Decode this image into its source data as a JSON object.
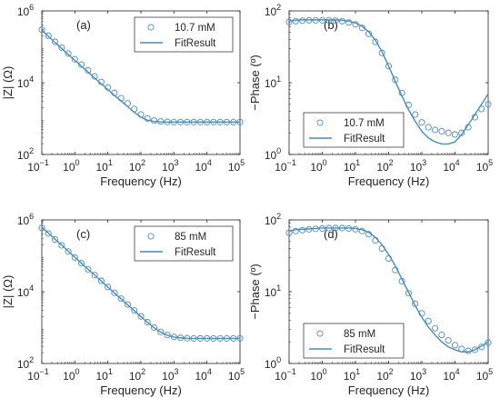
{
  "colors": {
    "series": "#4a8cbf",
    "axis": "#262626",
    "frame": "#262626",
    "background": "#ffffff"
  },
  "chart_data": [
    {
      "type": "scatter",
      "panel_label": "(a)",
      "xlabel": "Frequency (Hz)",
      "ylabel": "|Z| (Ω)",
      "xscale": "log",
      "yscale": "log",
      "xlim": [
        0.1,
        100000
      ],
      "ylim": [
        100,
        1000000
      ],
      "x_ticks": [
        {
          "value": 0.1,
          "base": "10",
          "exp": "−1"
        },
        {
          "value": 1,
          "base": "10",
          "exp": "0"
        },
        {
          "value": 10,
          "base": "10",
          "exp": "1"
        },
        {
          "value": 100,
          "base": "10",
          "exp": "2"
        },
        {
          "value": 1000,
          "base": "10",
          "exp": "3"
        },
        {
          "value": 10000,
          "base": "10",
          "exp": "4"
        },
        {
          "value": 100000,
          "base": "10",
          "exp": "5"
        }
      ],
      "y_ticks": [
        {
          "value": 100,
          "base": "10",
          "exp": "2"
        },
        {
          "value": 10000,
          "base": "10",
          "exp": "4"
        },
        {
          "value": 1000000,
          "base": "10",
          "exp": "6"
        }
      ],
      "legend": {
        "position": "top-right",
        "entries": [
          "10.7 mM",
          "FitResult"
        ]
      },
      "series": [
        {
          "name": "10.7 mM",
          "kind": "markers",
          "x": [
            0.1,
            0.158,
            0.251,
            0.398,
            0.631,
            1,
            1.58,
            2.51,
            3.98,
            6.31,
            10,
            15.8,
            25.1,
            39.8,
            63.1,
            100,
            158,
            251,
            398,
            631,
            1000,
            1580,
            2510,
            3980,
            6310,
            10000,
            15800,
            25100,
            39800,
            63100,
            100000
          ],
          "y": [
            300000,
            205000,
            138000,
            95000,
            65000,
            45000,
            32000,
            22000,
            15000,
            10500,
            7400,
            5200,
            3700,
            2650,
            1850,
            1300,
            1010,
            880,
            830,
            810,
            800,
            800,
            800,
            800,
            800,
            800,
            800,
            800,
            800,
            800,
            800
          ]
        },
        {
          "name": "FitResult",
          "kind": "line",
          "x": [
            0.1,
            0.158,
            0.251,
            0.398,
            0.631,
            1,
            1.58,
            2.51,
            3.98,
            6.31,
            10,
            15.8,
            25.1,
            39.8,
            63.1,
            100,
            158,
            251,
            398,
            631,
            1000,
            1580,
            2510,
            3980,
            6310,
            10000,
            15800,
            25100,
            39800,
            63100,
            100000
          ],
          "y": [
            290000,
            195000,
            132000,
            90000,
            61000,
            42000,
            29000,
            20000,
            13500,
            9300,
            6400,
            4400,
            3100,
            2150,
            1500,
            1100,
            900,
            830,
            805,
            800,
            800,
            800,
            800,
            800,
            800,
            800,
            800,
            800,
            800,
            800,
            800
          ]
        }
      ]
    },
    {
      "type": "scatter",
      "panel_label": "(b)",
      "xlabel": "Frequency (Hz)",
      "ylabel": "−Phase (º)",
      "xscale": "log",
      "yscale": "log",
      "xlim": [
        0.1,
        100000
      ],
      "ylim": [
        1,
        100
      ],
      "x_ticks": [
        {
          "value": 0.1,
          "base": "10",
          "exp": "−1"
        },
        {
          "value": 1,
          "base": "10",
          "exp": "0"
        },
        {
          "value": 10,
          "base": "10",
          "exp": "1"
        },
        {
          "value": 100,
          "base": "10",
          "exp": "2"
        },
        {
          "value": 1000,
          "base": "10",
          "exp": "3"
        },
        {
          "value": 10000,
          "base": "10",
          "exp": "4"
        },
        {
          "value": 100000,
          "base": "10",
          "exp": "5"
        }
      ],
      "y_ticks": [
        {
          "value": 1,
          "base": "10",
          "exp": "0"
        },
        {
          "value": 10,
          "base": "10",
          "exp": "1"
        },
        {
          "value": 100,
          "base": "10",
          "exp": "2"
        }
      ],
      "legend": {
        "position": "bottom-right",
        "entries": [
          "10.7 mM",
          "FitResult"
        ]
      },
      "series": [
        {
          "name": "10.7 mM",
          "kind": "markers",
          "x": [
            0.1,
            0.158,
            0.251,
            0.398,
            0.631,
            1,
            1.58,
            2.51,
            3.98,
            6.31,
            10,
            15.8,
            25.1,
            39.8,
            63.1,
            100,
            158,
            251,
            398,
            631,
            1000,
            1580,
            2510,
            3980,
            6310,
            10000,
            15800,
            25100,
            39800,
            63100,
            100000
          ],
          "y": [
            70,
            72,
            73,
            74,
            74,
            74,
            74,
            73,
            72,
            69,
            65,
            58,
            48,
            37,
            26,
            17,
            11,
            7.2,
            4.9,
            3.6,
            2.8,
            2.4,
            2.2,
            2.1,
            2.0,
            1.9,
            2.0,
            2.4,
            3.3,
            4.3,
            5.0
          ]
        },
        {
          "name": "FitResult",
          "kind": "line",
          "x": [
            0.1,
            0.158,
            0.251,
            0.398,
            0.631,
            1,
            1.58,
            2.51,
            3.98,
            6.31,
            10,
            15.8,
            25.1,
            39.8,
            63.1,
            100,
            158,
            251,
            398,
            631,
            1000,
            1580,
            2510,
            3980,
            6310,
            10000,
            15800,
            25100,
            39800,
            63100,
            100000
          ],
          "y": [
            73,
            74,
            75,
            75,
            75,
            75,
            75,
            75,
            74,
            72,
            68,
            61,
            51,
            39,
            27,
            17,
            10.5,
            6.5,
            4.2,
            2.9,
            2.1,
            1.7,
            1.5,
            1.4,
            1.4,
            1.5,
            1.9,
            2.6,
            3.6,
            5.0,
            7.0
          ]
        }
      ]
    },
    {
      "type": "scatter",
      "panel_label": "(c)",
      "xlabel": "Frequency (Hz)",
      "ylabel": "|Z| (Ω)",
      "xscale": "log",
      "yscale": "log",
      "xlim": [
        0.1,
        100000
      ],
      "ylim": [
        100,
        1000000
      ],
      "x_ticks": [
        {
          "value": 0.1,
          "base": "10",
          "exp": "−1"
        },
        {
          "value": 1,
          "base": "10",
          "exp": "0"
        },
        {
          "value": 10,
          "base": "10",
          "exp": "1"
        },
        {
          "value": 100,
          "base": "10",
          "exp": "2"
        },
        {
          "value": 1000,
          "base": "10",
          "exp": "3"
        },
        {
          "value": 10000,
          "base": "10",
          "exp": "4"
        },
        {
          "value": 100000,
          "base": "10",
          "exp": "5"
        }
      ],
      "y_ticks": [
        {
          "value": 100,
          "base": "10",
          "exp": "2"
        },
        {
          "value": 10000,
          "base": "10",
          "exp": "4"
        },
        {
          "value": 1000000,
          "base": "10",
          "exp": "6"
        }
      ],
      "legend": {
        "position": "top-right",
        "entries": [
          "85 mM",
          "FitResult"
        ]
      },
      "series": [
        {
          "name": "85 mM",
          "kind": "markers",
          "x": [
            0.1,
            0.158,
            0.251,
            0.398,
            0.631,
            1,
            1.58,
            2.51,
            3.98,
            6.31,
            10,
            15.8,
            25.1,
            39.8,
            63.1,
            100,
            158,
            251,
            398,
            631,
            1000,
            1580,
            2510,
            3980,
            6310,
            10000,
            15800,
            25100,
            39800,
            63100,
            100000
          ],
          "y": [
            600000,
            420000,
            285000,
            195000,
            132000,
            90000,
            62000,
            42000,
            29000,
            20000,
            13500,
            9300,
            6400,
            4400,
            3000,
            2050,
            1420,
            1000,
            760,
            620,
            550,
            520,
            505,
            500,
            500,
            500,
            500,
            500,
            500,
            500,
            500
          ]
        },
        {
          "name": "FitResult",
          "kind": "line",
          "x": [
            0.1,
            0.158,
            0.251,
            0.398,
            0.631,
            1,
            1.58,
            2.51,
            3.98,
            6.31,
            10,
            15.8,
            25.1,
            39.8,
            63.1,
            100,
            158,
            251,
            398,
            631,
            1000,
            1580,
            2510,
            3980,
            6310,
            10000,
            15800,
            25100,
            39800,
            63100,
            100000
          ],
          "y": [
            620000,
            430000,
            290000,
            198000,
            134000,
            91000,
            62000,
            42000,
            29000,
            19800,
            13400,
            9200,
            6300,
            4300,
            2950,
            2020,
            1400,
            990,
            750,
            610,
            545,
            515,
            503,
            500,
            500,
            500,
            500,
            500,
            500,
            500,
            500
          ]
        }
      ]
    },
    {
      "type": "scatter",
      "panel_label": "(d)",
      "xlabel": "Frequency (Hz)",
      "ylabel": "−Phase (º)",
      "xscale": "log",
      "yscale": "log",
      "xlim": [
        0.1,
        100000
      ],
      "ylim": [
        1,
        100
      ],
      "x_ticks": [
        {
          "value": 0.1,
          "base": "10",
          "exp": "−1"
        },
        {
          "value": 1,
          "base": "10",
          "exp": "0"
        },
        {
          "value": 10,
          "base": "10",
          "exp": "1"
        },
        {
          "value": 100,
          "base": "10",
          "exp": "2"
        },
        {
          "value": 1000,
          "base": "10",
          "exp": "3"
        },
        {
          "value": 10000,
          "base": "10",
          "exp": "4"
        },
        {
          "value": 100000,
          "base": "10",
          "exp": "5"
        }
      ],
      "y_ticks": [
        {
          "value": 1,
          "base": "10",
          "exp": "0"
        },
        {
          "value": 10,
          "base": "10",
          "exp": "1"
        },
        {
          "value": 100,
          "base": "10",
          "exp": "2"
        }
      ],
      "legend": {
        "position": "bottom-center",
        "entries": [
          "85 mM",
          "FitResult"
        ]
      },
      "series": [
        {
          "name": "85 mM",
          "kind": "markers",
          "x": [
            0.1,
            0.158,
            0.251,
            0.398,
            0.631,
            1,
            1.58,
            2.51,
            3.98,
            6.31,
            10,
            15.8,
            25.1,
            39.8,
            63.1,
            100,
            158,
            251,
            398,
            631,
            1000,
            1580,
            2510,
            3980,
            6310,
            10000,
            15800,
            25100,
            39800,
            63100,
            100000
          ],
          "y": [
            66,
            70,
            72,
            74,
            75,
            76,
            77,
            77,
            77,
            76,
            74,
            70,
            63,
            52,
            40,
            29,
            20,
            14,
            9.5,
            6.8,
            5.0,
            3.9,
            3.1,
            2.5,
            2.1,
            1.8,
            1.6,
            1.5,
            1.55,
            1.7,
            1.95
          ]
        },
        {
          "name": "FitResult",
          "kind": "line",
          "x": [
            0.1,
            0.158,
            0.251,
            0.398,
            0.631,
            1,
            1.58,
            2.51,
            3.98,
            6.31,
            10,
            15.8,
            25.1,
            39.8,
            63.1,
            100,
            158,
            251,
            398,
            631,
            1000,
            1580,
            2510,
            3980,
            6310,
            10000,
            15800,
            25100,
            39800,
            63100,
            100000
          ],
          "y": [
            70,
            73,
            74,
            75,
            76,
            77,
            77,
            77,
            77,
            77,
            76,
            73,
            67,
            57,
            45,
            33,
            23,
            15,
            9.8,
            6.4,
            4.4,
            3.2,
            2.5,
            2.0,
            1.7,
            1.55,
            1.45,
            1.45,
            1.55,
            1.75,
            2.0
          ]
        }
      ]
    }
  ]
}
